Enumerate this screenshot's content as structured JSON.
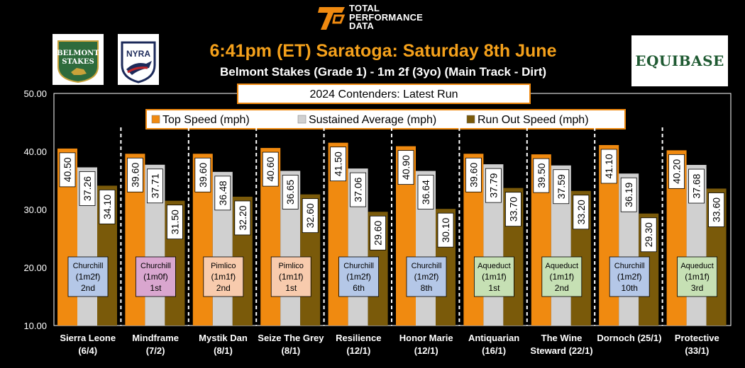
{
  "brand": {
    "tpd_line1": "TOTAL",
    "tpd_line2": "PERFORMANCE",
    "tpd_line3": "DATA",
    "belmont_line1": "BELMONT",
    "belmont_line2": "STAKES",
    "nyra": "NYRA",
    "equibase": "EQUIBASE"
  },
  "header": {
    "title": "6:41pm (ET) Saratoga:  Saturday 8th June",
    "subtitle": "Belmont Stakes (Grade 1) - 1m 2f (3yo) (Main Track - Dirt)"
  },
  "chart_data": {
    "type": "bar",
    "title": "2024 Contenders: Latest Run",
    "ylim": [
      10,
      50
    ],
    "yticks": [
      "10.00",
      "20.00",
      "30.00",
      "40.00",
      "50.00"
    ],
    "legend_position": "top",
    "categories": [
      [
        "Sierra Leone",
        "(6/4)"
      ],
      [
        "Mindframe",
        "(7/2)"
      ],
      [
        "Mystik Dan",
        "(8/1)"
      ],
      [
        "Seize The Grey",
        "(8/1)"
      ],
      [
        "Resilience",
        "(12/1)"
      ],
      [
        "Honor Marie",
        "(12/1)"
      ],
      [
        "Antiquarian",
        "(16/1)"
      ],
      [
        "The Wine",
        "Steward (22/1)"
      ],
      [
        "Dornoch (25/1)",
        ""
      ],
      [
        "Protective",
        "(33/1)"
      ]
    ],
    "series": [
      {
        "name": "Top Speed (mph)",
        "color": "#f08a10",
        "values": [
          40.5,
          39.6,
          39.6,
          40.6,
          41.5,
          40.9,
          39.6,
          39.5,
          41.1,
          40.2
        ],
        "labels": [
          "40.50",
          "39.60",
          "39.60",
          "40.60",
          "41.50",
          "40.90",
          "39.60",
          "39.50",
          "41.10",
          "40.20"
        ]
      },
      {
        "name": "Sustained Average (mph)",
        "color": "#d0d0d0",
        "values": [
          37.26,
          37.71,
          36.48,
          36.65,
          37.06,
          36.64,
          37.79,
          37.59,
          36.19,
          37.68
        ],
        "labels": [
          "37.26",
          "37.71",
          "36.48",
          "36.65",
          "37.06",
          "36.64",
          "37.79",
          "37.59",
          "36.19",
          "37.68"
        ]
      },
      {
        "name": "Run Out Speed (mph)",
        "color": "#7a5a0a",
        "values": [
          34.1,
          31.5,
          32.2,
          32.6,
          29.6,
          30.1,
          33.7,
          33.2,
          29.3,
          33.6
        ],
        "labels": [
          "34.10",
          "31.50",
          "32.20",
          "32.60",
          "29.60",
          "30.10",
          "33.70",
          "33.20",
          "29.30",
          "33.60"
        ]
      }
    ],
    "annotations": [
      {
        "track": "Churchill",
        "dist": "(1m2f)",
        "place": "2nd",
        "color": "#b4c7e7"
      },
      {
        "track": "Churchill",
        "dist": "(1m0f)",
        "place": "1st",
        "color": "#d9a6cf"
      },
      {
        "track": "Pimlico",
        "dist": "(1m1f)",
        "place": "2nd",
        "color": "#f8cbad"
      },
      {
        "track": "Pimlico",
        "dist": "(1m1f)",
        "place": "1st",
        "color": "#f8cbad"
      },
      {
        "track": "Churchill",
        "dist": "(1m2f)",
        "place": "6th",
        "color": "#b4c7e7"
      },
      {
        "track": "Churchill",
        "dist": "(1m2f)",
        "place": "8th",
        "color": "#b4c7e7"
      },
      {
        "track": "Aqueduct",
        "dist": "(1m1f)",
        "place": "1st",
        "color": "#c6e0b4"
      },
      {
        "track": "Aqueduct",
        "dist": "(1m1f)",
        "place": "2nd",
        "color": "#c6e0b4"
      },
      {
        "track": "Churchill",
        "dist": "(1m2f)",
        "place": "10th",
        "color": "#b4c7e7"
      },
      {
        "track": "Aqueduct",
        "dist": "(1m1f)",
        "place": "3rd",
        "color": "#c6e0b4"
      }
    ]
  }
}
